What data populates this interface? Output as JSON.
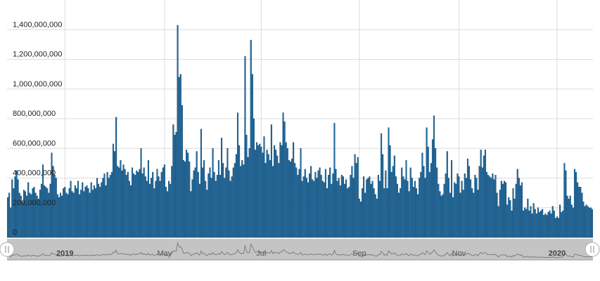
{
  "chart_data": {
    "type": "bar",
    "values": [
      270000000,
      300000000,
      200000000,
      390000000,
      330000000,
      410000000,
      450000000,
      390000000,
      300000000,
      280000000,
      240000000,
      320000000,
      310000000,
      280000000,
      370000000,
      300000000,
      290000000,
      330000000,
      340000000,
      300000000,
      280000000,
      260000000,
      320000000,
      360000000,
      490000000,
      350000000,
      340000000,
      330000000,
      300000000,
      360000000,
      570000000,
      480000000,
      420000000,
      400000000,
      290000000,
      270000000,
      300000000,
      280000000,
      330000000,
      340000000,
      300000000,
      290000000,
      330000000,
      380000000,
      310000000,
      300000000,
      350000000,
      330000000,
      380000000,
      290000000,
      320000000,
      370000000,
      310000000,
      340000000,
      350000000,
      330000000,
      300000000,
      370000000,
      320000000,
      350000000,
      330000000,
      400000000,
      360000000,
      340000000,
      370000000,
      400000000,
      430000000,
      350000000,
      440000000,
      400000000,
      420000000,
      440000000,
      630000000,
      580000000,
      810000000,
      480000000,
      470000000,
      520000000,
      450000000,
      490000000,
      460000000,
      420000000,
      440000000,
      380000000,
      350000000,
      470000000,
      430000000,
      420000000,
      450000000,
      440000000,
      460000000,
      600000000,
      430000000,
      470000000,
      410000000,
      380000000,
      520000000,
      360000000,
      400000000,
      440000000,
      330000000,
      380000000,
      460000000,
      410000000,
      380000000,
      440000000,
      470000000,
      490000000,
      340000000,
      310000000,
      380000000,
      360000000,
      480000000,
      760000000,
      690000000,
      710000000,
      1430000000,
      1080000000,
      1100000000,
      890000000,
      520000000,
      510000000,
      590000000,
      570000000,
      510000000,
      310000000,
      390000000,
      450000000,
      470000000,
      580000000,
      440000000,
      360000000,
      730000000,
      470000000,
      520000000,
      380000000,
      320000000,
      430000000,
      470000000,
      400000000,
      600000000,
      440000000,
      380000000,
      420000000,
      520000000,
      420000000,
      670000000,
      500000000,
      400000000,
      470000000,
      600000000,
      450000000,
      380000000,
      410000000,
      470000000,
      500000000,
      560000000,
      840000000,
      620000000,
      480000000,
      520000000,
      490000000,
      1220000000,
      690000000,
      540000000,
      600000000,
      1330000000,
      1100000000,
      800000000,
      590000000,
      640000000,
      620000000,
      630000000,
      610000000,
      570000000,
      680000000,
      500000000,
      590000000,
      560000000,
      520000000,
      760000000,
      480000000,
      620000000,
      590000000,
      550000000,
      500000000,
      640000000,
      620000000,
      840000000,
      780000000,
      640000000,
      600000000,
      520000000,
      510000000,
      530000000,
      640000000,
      500000000,
      470000000,
      420000000,
      460000000,
      600000000,
      380000000,
      410000000,
      460000000,
      400000000,
      370000000,
      430000000,
      480000000,
      390000000,
      380000000,
      440000000,
      400000000,
      450000000,
      470000000,
      420000000,
      380000000,
      370000000,
      460000000,
      330000000,
      420000000,
      470000000,
      360000000,
      430000000,
      770000000,
      460000000,
      380000000,
      400000000,
      350000000,
      420000000,
      410000000,
      360000000,
      390000000,
      330000000,
      340000000,
      420000000,
      480000000,
      400000000,
      560000000,
      500000000,
      540000000,
      260000000,
      240000000,
      330000000,
      410000000,
      300000000,
      390000000,
      400000000,
      410000000,
      360000000,
      380000000,
      330000000,
      290000000,
      260000000,
      420000000,
      380000000,
      700000000,
      560000000,
      330000000,
      450000000,
      330000000,
      740000000,
      620000000,
      440000000,
      480000000,
      550000000,
      410000000,
      360000000,
      300000000,
      330000000,
      470000000,
      410000000,
      390000000,
      520000000,
      380000000,
      310000000,
      470000000,
      400000000,
      340000000,
      380000000,
      330000000,
      290000000,
      400000000,
      440000000,
      570000000,
      480000000,
      400000000,
      740000000,
      610000000,
      440000000,
      500000000,
      660000000,
      820000000,
      600000000,
      470000000,
      360000000,
      310000000,
      280000000,
      290000000,
      360000000,
      430000000,
      580000000,
      400000000,
      300000000,
      520000000,
      270000000,
      370000000,
      360000000,
      430000000,
      410000000,
      300000000,
      380000000,
      320000000,
      430000000,
      400000000,
      530000000,
      480000000,
      390000000,
      330000000,
      300000000,
      420000000,
      400000000,
      320000000,
      480000000,
      590000000,
      470000000,
      550000000,
      590000000,
      440000000,
      420000000,
      410000000,
      400000000,
      430000000,
      390000000,
      420000000,
      300000000,
      210000000,
      320000000,
      380000000,
      360000000,
      380000000,
      370000000,
      220000000,
      270000000,
      250000000,
      180000000,
      330000000,
      260000000,
      360000000,
      460000000,
      400000000,
      350000000,
      370000000,
      180000000,
      200000000,
      190000000,
      260000000,
      180000000,
      210000000,
      160000000,
      230000000,
      190000000,
      160000000,
      200000000,
      170000000,
      180000000,
      190000000,
      150000000,
      160000000,
      150000000,
      170000000,
      180000000,
      160000000,
      210000000,
      180000000,
      130000000,
      140000000,
      130000000,
      220000000,
      170000000,
      180000000,
      500000000,
      450000000,
      280000000,
      260000000,
      280000000,
      220000000,
      200000000,
      460000000,
      440000000,
      370000000,
      340000000,
      340000000,
      300000000,
      240000000,
      210000000,
      220000000,
      210000000,
      200000000,
      200000000,
      190000000
    ],
    "categories": [
      null,
      null,
      null,
      null,
      null,
      null,
      null,
      null,
      null,
      null,
      null,
      null,
      null,
      null,
      null,
      null,
      null,
      null,
      null,
      null,
      null,
      null,
      null,
      null,
      null,
      null,
      null,
      null,
      null,
      null,
      null,
      null,
      null,
      null,
      null,
      null,
      null,
      null,
      null,
      "2019",
      null,
      null,
      null,
      null,
      null,
      null,
      null,
      null,
      null,
      null,
      null,
      null,
      null,
      null,
      null,
      null,
      null,
      null,
      null,
      null,
      null,
      null,
      null,
      null,
      null,
      null,
      null,
      null,
      null,
      null,
      null,
      null,
      null,
      null,
      null,
      null,
      null,
      null,
      null,
      null,
      null,
      null,
      null,
      null,
      null,
      null,
      null,
      null,
      null,
      null,
      null,
      null,
      null,
      null,
      null,
      null,
      null,
      null,
      null,
      null,
      null,
      null,
      null,
      null,
      null,
      null,
      null,
      "May",
      null,
      null,
      null,
      null,
      null,
      null,
      null,
      null,
      null,
      null,
      null,
      null,
      null,
      null,
      null,
      null,
      null,
      null,
      null,
      null,
      null,
      null,
      null,
      null,
      null,
      null,
      null,
      null,
      null,
      null,
      null,
      null,
      null,
      null,
      null,
      null,
      null,
      null,
      null,
      null,
      null,
      null,
      null,
      null,
      null,
      null,
      null,
      null,
      null,
      null,
      null,
      null,
      null,
      null,
      null,
      null,
      null,
      null,
      null,
      null,
      null,
      null,
      null,
      null,
      null,
      "Jul",
      null,
      null,
      null,
      null,
      null,
      null,
      null,
      null,
      null,
      null,
      null,
      null,
      null,
      null,
      null,
      null,
      null,
      null,
      null,
      null,
      null,
      null,
      null,
      null,
      null,
      null,
      null,
      null,
      null,
      null,
      null,
      null,
      null,
      null,
      null,
      null,
      null,
      null,
      null,
      null,
      null,
      null,
      null,
      null,
      null,
      null,
      null,
      null,
      null,
      null,
      null,
      null,
      null,
      null,
      null,
      null,
      null,
      null,
      null,
      null,
      null,
      null,
      null,
      null,
      null,
      null,
      "Sep",
      null,
      null,
      null,
      null,
      null,
      null,
      null,
      null,
      null,
      null,
      null,
      null,
      null,
      null,
      null,
      null,
      null,
      null,
      null,
      null,
      null,
      null,
      null,
      null,
      null,
      null,
      null,
      null,
      null,
      null,
      null,
      null,
      null,
      null,
      null,
      null,
      null,
      null,
      null,
      null,
      null,
      null,
      null,
      null,
      null,
      null,
      null,
      null,
      null,
      null,
      null,
      null,
      null,
      null,
      null,
      null,
      null,
      null,
      null,
      null,
      null,
      null,
      null,
      null,
      null,
      null,
      null,
      "Nov",
      null,
      null,
      null,
      null,
      null,
      null,
      null,
      null,
      null,
      null,
      null,
      null,
      null,
      null,
      null,
      null,
      null,
      null,
      null,
      null,
      null,
      null,
      null,
      null,
      null,
      null,
      null,
      null,
      null,
      null,
      null,
      null,
      null,
      null,
      null,
      null,
      null,
      null,
      null,
      null,
      null,
      null,
      null,
      null,
      null,
      null,
      null,
      null,
      null,
      null,
      null,
      null,
      null,
      null,
      null,
      null,
      null,
      null,
      null,
      null,
      null,
      null,
      null,
      null,
      null,
      null,
      "2020",
      null,
      null,
      null,
      null,
      null,
      null,
      null,
      null,
      null,
      null,
      null,
      null,
      null,
      null,
      null,
      null,
      null,
      null,
      null,
      null,
      null,
      null,
      null,
      null
    ],
    "color": "#1f6ea5",
    "ylim": [
      0,
      1600000000
    ],
    "yticks": [
      0,
      {
        "value": 200000000,
        "label": "200,000,000"
      },
      {
        "value": 400000000,
        "label": "400,000,000"
      },
      {
        "value": 600000000,
        "label": "600,000,000"
      },
      {
        "value": 800000000,
        "label": "800,000,000"
      },
      {
        "value": 1000000000,
        "label": "1,000,000,000"
      },
      {
        "value": 1200000000,
        "label": "1,200,000,000"
      },
      {
        "value": 1400000000,
        "label": "1,400,000,000"
      }
    ],
    "grid": true
  }
}
